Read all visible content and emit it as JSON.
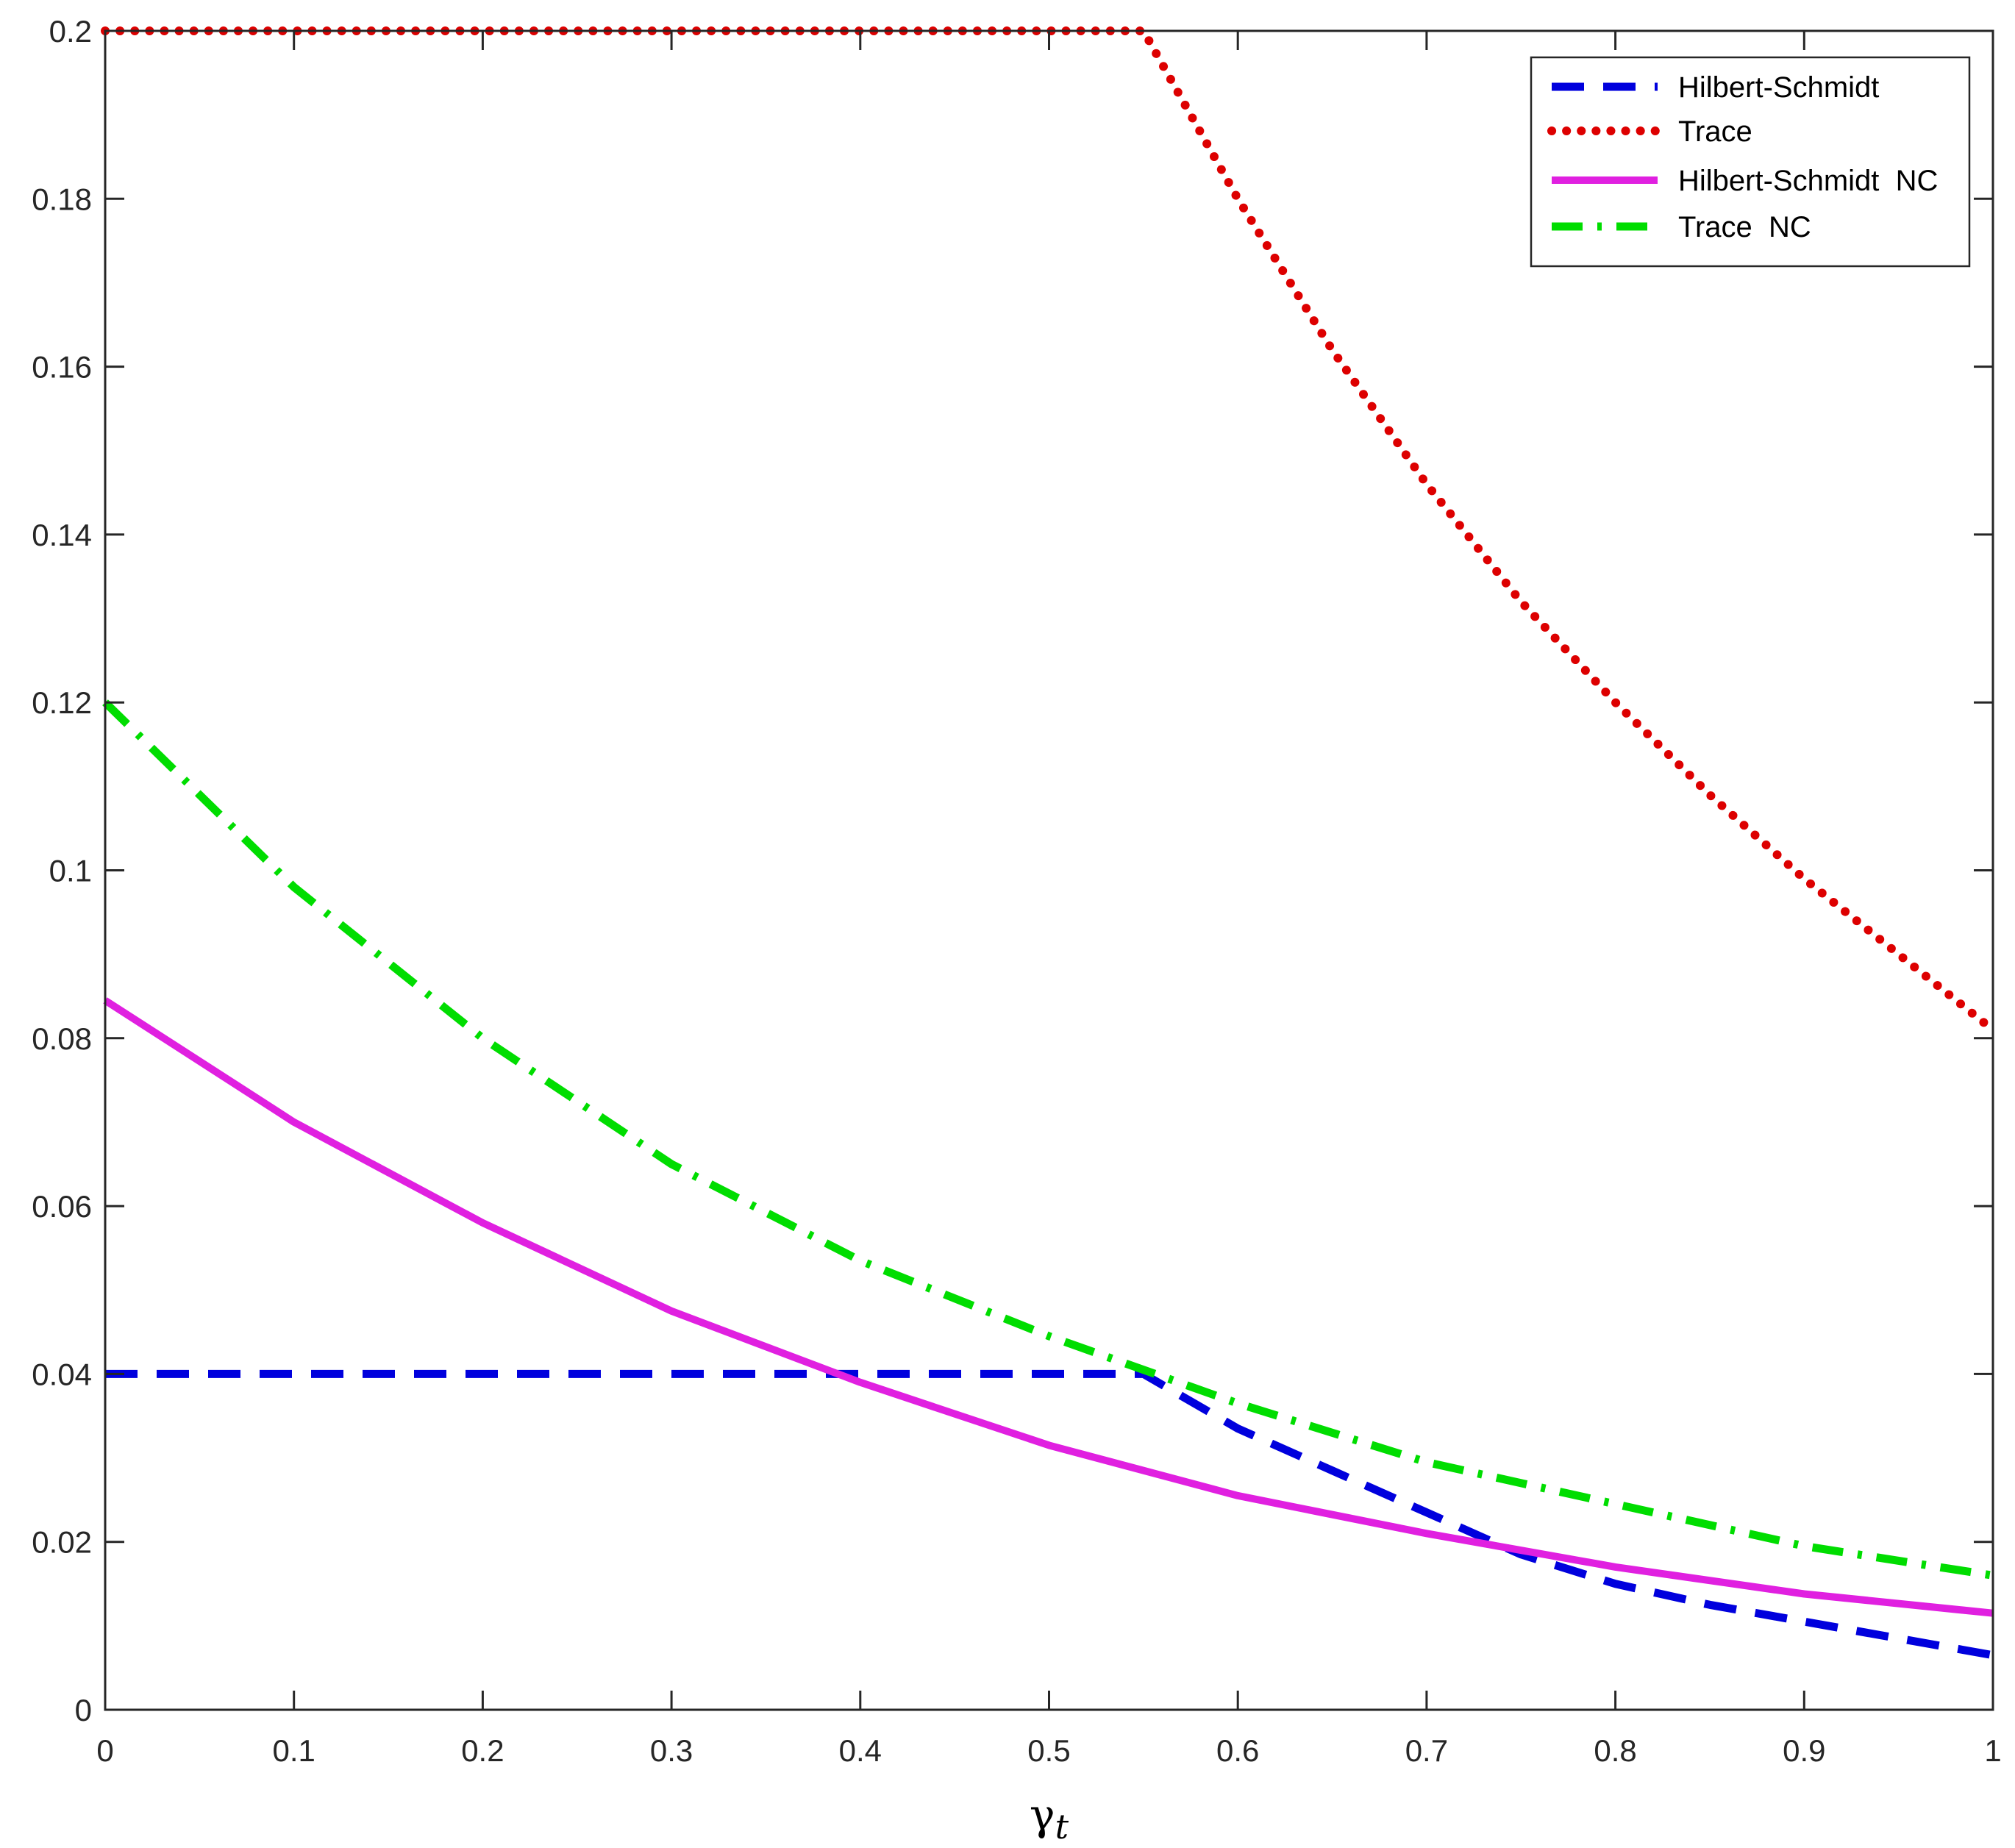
{
  "chart_data": {
    "type": "line",
    "title": "",
    "xlabel": "γ",
    "xlabel_sub": "t",
    "ylabel": "",
    "xlim": [
      0,
      1
    ],
    "ylim": [
      0,
      0.2
    ],
    "xticks": [
      "0",
      "0.1",
      "0.2",
      "0.3",
      "0.4",
      "0.5",
      "0.6",
      "0.7",
      "0.8",
      "0.9",
      "1"
    ],
    "yticks": [
      "0",
      "0.02",
      "0.04",
      "0.06",
      "0.08",
      "0.1",
      "0.12",
      "0.14",
      "0.16",
      "0.18",
      "0.2"
    ],
    "grid": false,
    "legend_position": "top-right",
    "series": [
      {
        "name": "Hilbert-Schmidt",
        "color": "#0000dd",
        "style": "dashed",
        "x": [
          0,
          0.1,
          0.2,
          0.3,
          0.4,
          0.5,
          0.55,
          0.6,
          0.65,
          0.7,
          0.75,
          0.8,
          0.85,
          0.9,
          0.95,
          1.0
        ],
        "y": [
          0.04,
          0.04,
          0.04,
          0.04,
          0.04,
          0.04,
          0.04,
          0.0335,
          0.0285,
          0.0235,
          0.0185,
          0.015,
          0.0125,
          0.0105,
          0.0085,
          0.0065
        ]
      },
      {
        "name": "Trace",
        "color": "#dd0000",
        "style": "dotted",
        "x": [
          0,
          0.1,
          0.2,
          0.3,
          0.4,
          0.5,
          0.55,
          0.6,
          0.65,
          0.7,
          0.75,
          0.8,
          0.85,
          0.9,
          0.95,
          1.0
        ],
        "y": [
          0.2,
          0.2,
          0.2,
          0.2,
          0.2,
          0.2,
          0.2,
          0.18,
          0.162,
          0.146,
          0.132,
          0.12,
          0.109,
          0.099,
          0.09,
          0.081
        ]
      },
      {
        "name": "Hilbert-Schmidt  NC",
        "color": "#e020e0",
        "style": "solid",
        "x": [
          0,
          0.1,
          0.2,
          0.3,
          0.4,
          0.5,
          0.6,
          0.7,
          0.8,
          0.9,
          1.0
        ],
        "y": [
          0.0845,
          0.07,
          0.058,
          0.0475,
          0.039,
          0.0315,
          0.0255,
          0.021,
          0.017,
          0.0138,
          0.0115
        ]
      },
      {
        "name": "Trace  NC",
        "color": "#00dd00",
        "style": "dashdot",
        "x": [
          0,
          0.1,
          0.2,
          0.3,
          0.4,
          0.5,
          0.6,
          0.7,
          0.8,
          0.9,
          1.0
        ],
        "y": [
          0.12,
          0.098,
          0.08,
          0.065,
          0.0535,
          0.0445,
          0.0365,
          0.0295,
          0.0245,
          0.0195,
          0.016
        ]
      }
    ]
  }
}
